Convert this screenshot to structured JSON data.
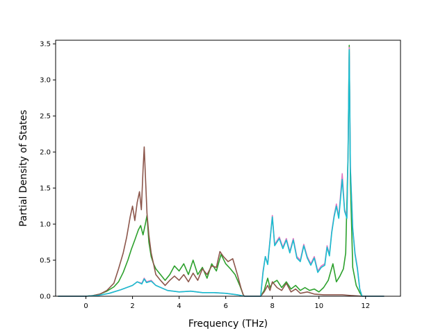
{
  "chart_data": {
    "type": "line",
    "title": "",
    "xlabel": "Frequency (THz)",
    "ylabel": "Partial Density of States",
    "xlim": [
      -1.3,
      13.5
    ],
    "ylim": [
      0.0,
      3.55
    ],
    "xticks": [
      0,
      2,
      4,
      6,
      8,
      10,
      12
    ],
    "yticks": [
      0.0,
      0.5,
      1.0,
      1.5,
      2.0,
      2.5,
      3.0,
      3.5
    ],
    "xtick_labels": [
      "0",
      "2",
      "4",
      "6",
      "8",
      "10",
      "12"
    ],
    "ytick_labels": [
      "0.0",
      "0.5",
      "1.0",
      "1.5",
      "2.0",
      "2.5",
      "3.0",
      "3.5"
    ],
    "grid": false,
    "legend": "none",
    "series": [
      {
        "color": "#2ca02c",
        "points": [
          [
            -1.2,
            0
          ],
          [
            0,
            0
          ],
          [
            0.3,
            0.01
          ],
          [
            0.6,
            0.03
          ],
          [
            0.9,
            0.07
          ],
          [
            1.2,
            0.13
          ],
          [
            1.4,
            0.2
          ],
          [
            1.6,
            0.33
          ],
          [
            1.8,
            0.5
          ],
          [
            1.95,
            0.65
          ],
          [
            2.1,
            0.78
          ],
          [
            2.25,
            0.92
          ],
          [
            2.35,
            0.98
          ],
          [
            2.45,
            0.85
          ],
          [
            2.55,
            1.0
          ],
          [
            2.62,
            1.12
          ],
          [
            2.7,
            0.75
          ],
          [
            2.8,
            0.55
          ],
          [
            2.9,
            0.45
          ],
          [
            3.0,
            0.38
          ],
          [
            3.2,
            0.3
          ],
          [
            3.4,
            0.22
          ],
          [
            3.6,
            0.3
          ],
          [
            3.8,
            0.42
          ],
          [
            4.0,
            0.35
          ],
          [
            4.2,
            0.45
          ],
          [
            4.4,
            0.3
          ],
          [
            4.6,
            0.5
          ],
          [
            4.8,
            0.3
          ],
          [
            5.0,
            0.4
          ],
          [
            5.2,
            0.25
          ],
          [
            5.4,
            0.45
          ],
          [
            5.6,
            0.35
          ],
          [
            5.8,
            0.58
          ],
          [
            6.0,
            0.45
          ],
          [
            6.2,
            0.38
          ],
          [
            6.4,
            0.3
          ],
          [
            6.6,
            0.15
          ],
          [
            6.75,
            0.02
          ],
          [
            6.8,
            0
          ],
          [
            7.5,
            0
          ],
          [
            7.65,
            0.08
          ],
          [
            7.8,
            0.25
          ],
          [
            7.9,
            0.12
          ],
          [
            8.0,
            0.18
          ],
          [
            8.2,
            0.22
          ],
          [
            8.4,
            0.12
          ],
          [
            8.6,
            0.2
          ],
          [
            8.8,
            0.1
          ],
          [
            9.0,
            0.15
          ],
          [
            9.2,
            0.08
          ],
          [
            9.4,
            0.12
          ],
          [
            9.6,
            0.08
          ],
          [
            9.8,
            0.1
          ],
          [
            10.0,
            0.06
          ],
          [
            10.2,
            0.12
          ],
          [
            10.4,
            0.22
          ],
          [
            10.6,
            0.45
          ],
          [
            10.75,
            0.2
          ],
          [
            10.9,
            0.28
          ],
          [
            11.05,
            0.38
          ],
          [
            11.15,
            0.6
          ],
          [
            11.25,
            2.0
          ],
          [
            11.3,
            3.48
          ],
          [
            11.35,
            1.6
          ],
          [
            11.45,
            0.4
          ],
          [
            11.6,
            0.15
          ],
          [
            11.75,
            0.05
          ],
          [
            11.85,
            0
          ],
          [
            12.8,
            0
          ]
        ]
      },
      {
        "color": "#8c564b",
        "points": [
          [
            -1.2,
            0
          ],
          [
            0,
            0
          ],
          [
            0.3,
            0.01
          ],
          [
            0.6,
            0.03
          ],
          [
            0.9,
            0.08
          ],
          [
            1.2,
            0.18
          ],
          [
            1.4,
            0.38
          ],
          [
            1.6,
            0.6
          ],
          [
            1.75,
            0.82
          ],
          [
            1.9,
            1.1
          ],
          [
            2.0,
            1.25
          ],
          [
            2.1,
            1.05
          ],
          [
            2.2,
            1.3
          ],
          [
            2.3,
            1.45
          ],
          [
            2.38,
            1.2
          ],
          [
            2.45,
            1.75
          ],
          [
            2.5,
            2.07
          ],
          [
            2.55,
            1.7
          ],
          [
            2.62,
            1.15
          ],
          [
            2.7,
            0.85
          ],
          [
            2.8,
            0.6
          ],
          [
            2.9,
            0.45
          ],
          [
            3.0,
            0.3
          ],
          [
            3.2,
            0.22
          ],
          [
            3.4,
            0.15
          ],
          [
            3.6,
            0.22
          ],
          [
            3.8,
            0.28
          ],
          [
            4.0,
            0.22
          ],
          [
            4.2,
            0.3
          ],
          [
            4.4,
            0.2
          ],
          [
            4.6,
            0.32
          ],
          [
            4.8,
            0.22
          ],
          [
            5.0,
            0.38
          ],
          [
            5.2,
            0.3
          ],
          [
            5.4,
            0.42
          ],
          [
            5.6,
            0.4
          ],
          [
            5.75,
            0.62
          ],
          [
            5.9,
            0.55
          ],
          [
            6.1,
            0.48
          ],
          [
            6.3,
            0.52
          ],
          [
            6.5,
            0.3
          ],
          [
            6.65,
            0.12
          ],
          [
            6.75,
            0.02
          ],
          [
            6.8,
            0
          ],
          [
            7.5,
            0
          ],
          [
            7.65,
            0.06
          ],
          [
            7.8,
            0.15
          ],
          [
            7.9,
            0.08
          ],
          [
            8.0,
            0.2
          ],
          [
            8.2,
            0.12
          ],
          [
            8.4,
            0.08
          ],
          [
            8.6,
            0.18
          ],
          [
            8.8,
            0.06
          ],
          [
            9.0,
            0.1
          ],
          [
            9.2,
            0.04
          ],
          [
            9.5,
            0.06
          ],
          [
            9.8,
            0.03
          ],
          [
            10.2,
            0.02
          ],
          [
            10.6,
            0.02
          ],
          [
            11.0,
            0.02
          ],
          [
            11.4,
            0.01
          ],
          [
            11.85,
            0
          ],
          [
            12.8,
            0
          ]
        ]
      },
      {
        "color": "#e377c2",
        "points": [
          [
            -1.2,
            0
          ],
          [
            0,
            0
          ],
          [
            0.5,
            0.01
          ],
          [
            1.0,
            0.04
          ],
          [
            1.5,
            0.09
          ],
          [
            2.0,
            0.15
          ],
          [
            2.2,
            0.2
          ],
          [
            2.4,
            0.18
          ],
          [
            2.5,
            0.25
          ],
          [
            2.6,
            0.2
          ],
          [
            2.8,
            0.22
          ],
          [
            3.0,
            0.15
          ],
          [
            3.5,
            0.08
          ],
          [
            4.0,
            0.06
          ],
          [
            4.5,
            0.07
          ],
          [
            5.0,
            0.05
          ],
          [
            5.5,
            0.05
          ],
          [
            6.0,
            0.04
          ],
          [
            6.5,
            0.02
          ],
          [
            6.8,
            0
          ],
          [
            7.5,
            0
          ],
          [
            7.6,
            0.35
          ],
          [
            7.7,
            0.55
          ],
          [
            7.8,
            0.45
          ],
          [
            8.0,
            1.12
          ],
          [
            8.1,
            0.72
          ],
          [
            8.3,
            0.82
          ],
          [
            8.45,
            0.68
          ],
          [
            8.6,
            0.8
          ],
          [
            8.75,
            0.62
          ],
          [
            8.9,
            0.8
          ],
          [
            9.05,
            0.55
          ],
          [
            9.2,
            0.5
          ],
          [
            9.35,
            0.72
          ],
          [
            9.5,
            0.55
          ],
          [
            9.65,
            0.45
          ],
          [
            9.8,
            0.55
          ],
          [
            9.95,
            0.35
          ],
          [
            10.1,
            0.42
          ],
          [
            10.25,
            0.45
          ],
          [
            10.35,
            0.7
          ],
          [
            10.45,
            0.58
          ],
          [
            10.55,
            0.9
          ],
          [
            10.65,
            1.12
          ],
          [
            10.75,
            1.28
          ],
          [
            10.85,
            1.1
          ],
          [
            11.0,
            1.7
          ],
          [
            11.1,
            1.2
          ],
          [
            11.2,
            1.1
          ],
          [
            11.25,
            2.0
          ],
          [
            11.3,
            3.45
          ],
          [
            11.35,
            1.8
          ],
          [
            11.45,
            0.95
          ],
          [
            11.55,
            0.6
          ],
          [
            11.65,
            0.4
          ],
          [
            11.75,
            0.1
          ],
          [
            11.85,
            0
          ],
          [
            12.8,
            0
          ]
        ]
      },
      {
        "color": "#17becf",
        "points": [
          [
            -1.2,
            0
          ],
          [
            0,
            0
          ],
          [
            0.5,
            0.01
          ],
          [
            1.0,
            0.04
          ],
          [
            1.5,
            0.09
          ],
          [
            2.0,
            0.15
          ],
          [
            2.2,
            0.2
          ],
          [
            2.4,
            0.17
          ],
          [
            2.5,
            0.24
          ],
          [
            2.6,
            0.19
          ],
          [
            2.8,
            0.21
          ],
          [
            3.0,
            0.15
          ],
          [
            3.5,
            0.08
          ],
          [
            4.0,
            0.06
          ],
          [
            4.5,
            0.07
          ],
          [
            5.0,
            0.05
          ],
          [
            5.5,
            0.05
          ],
          [
            6.0,
            0.04
          ],
          [
            6.5,
            0.02
          ],
          [
            6.8,
            0
          ],
          [
            7.5,
            0
          ],
          [
            7.6,
            0.33
          ],
          [
            7.7,
            0.55
          ],
          [
            7.8,
            0.44
          ],
          [
            8.0,
            1.1
          ],
          [
            8.1,
            0.7
          ],
          [
            8.3,
            0.8
          ],
          [
            8.45,
            0.66
          ],
          [
            8.6,
            0.78
          ],
          [
            8.75,
            0.6
          ],
          [
            8.9,
            0.78
          ],
          [
            9.05,
            0.53
          ],
          [
            9.2,
            0.48
          ],
          [
            9.35,
            0.7
          ],
          [
            9.5,
            0.53
          ],
          [
            9.65,
            0.43
          ],
          [
            9.8,
            0.53
          ],
          [
            9.95,
            0.33
          ],
          [
            10.1,
            0.4
          ],
          [
            10.25,
            0.43
          ],
          [
            10.35,
            0.68
          ],
          [
            10.45,
            0.56
          ],
          [
            10.55,
            0.88
          ],
          [
            10.65,
            1.1
          ],
          [
            10.75,
            1.25
          ],
          [
            10.85,
            1.08
          ],
          [
            11.0,
            1.62
          ],
          [
            11.1,
            1.18
          ],
          [
            11.2,
            1.08
          ],
          [
            11.25,
            1.95
          ],
          [
            11.3,
            3.42
          ],
          [
            11.35,
            1.78
          ],
          [
            11.45,
            0.93
          ],
          [
            11.55,
            0.58
          ],
          [
            11.65,
            0.38
          ],
          [
            11.75,
            0.1
          ],
          [
            11.85,
            0
          ],
          [
            12.8,
            0
          ]
        ]
      }
    ]
  }
}
